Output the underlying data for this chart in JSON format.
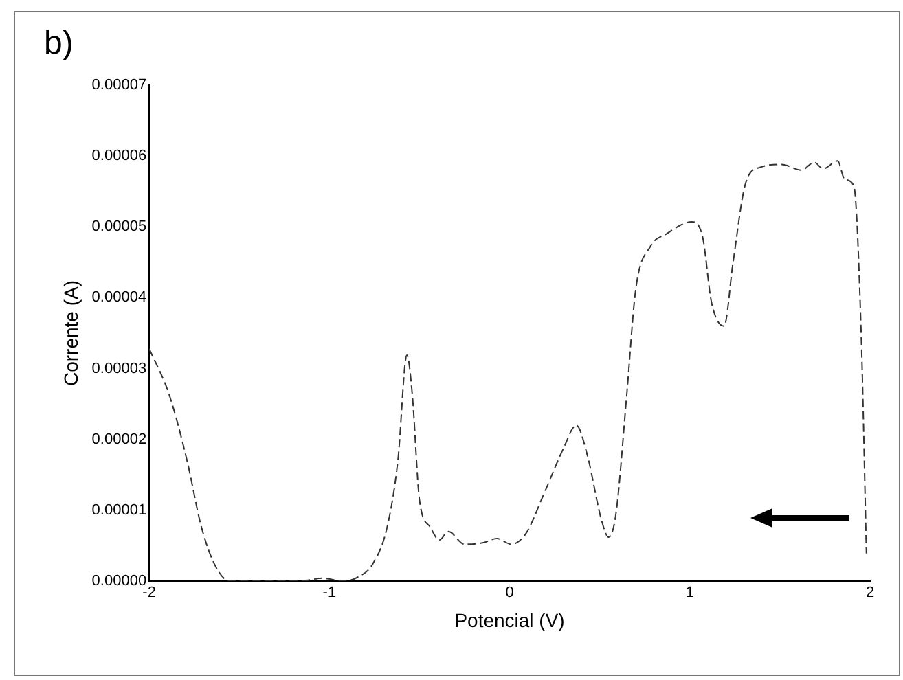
{
  "chart_data": {
    "type": "line",
    "title": "b)",
    "xlabel": "Potencial (V)",
    "ylabel": "Corrente (A)",
    "x": [
      -2,
      -1.889,
      -1.79,
      -1.71,
      -1.63,
      -1.55,
      -1.16,
      -1.04,
      -0.92,
      -0.84,
      -0.76,
      -0.68,
      -0.62,
      -0.57,
      -0.54,
      -0.5,
      -0.44,
      -0.39,
      -0.34,
      -0.25,
      -0.15,
      -0.07,
      0.01,
      0.09,
      0.19,
      0.3,
      0.37,
      0.43,
      0.51,
      0.55,
      0.59,
      0.65,
      0.7,
      0.78,
      0.87,
      1.01,
      1.07,
      1.12,
      1.19,
      1.24,
      1.31,
      1.39,
      1.51,
      1.62,
      1.69,
      1.74,
      1.82,
      1.86,
      1.91,
      1.95,
      1.98
    ],
    "series": [
      {
        "color": "#333333",
        "values": [
          3.28e-05,
          2.63e-05,
          1.7e-05,
          7.6e-06,
          2e-06,
          0,
          0,
          4e-07,
          0,
          6e-07,
          2.4e-06,
          7.6e-06,
          1.7e-05,
          3.19e-05,
          2.63e-05,
          1.14e-05,
          7.6e-06,
          5.8e-06,
          7e-06,
          5.2e-06,
          5.4e-06,
          6e-06,
          5.2e-06,
          6.7e-06,
          1.23e-05,
          1.88e-05,
          2.2e-05,
          1.79e-05,
          8.6e-06,
          6.2e-06,
          9.5e-06,
          2.63e-05,
          4.12e-05,
          4.72e-05,
          4.9e-05,
          5.07e-05,
          4.87e-05,
          3.94e-05,
          3.6e-05,
          4.5e-05,
          5.62e-05,
          5.84e-05,
          5.88e-05,
          5.8e-05,
          5.91e-05,
          5.82e-05,
          5.93e-05,
          5.67e-05,
          5.58e-05,
          3.56e-05,
          3.9e-06
        ]
      }
    ],
    "xlim": [
      -2,
      2
    ],
    "xticks": [
      -2,
      -1,
      0,
      1,
      2
    ],
    "ylim": [
      0,
      7e-05
    ],
    "yticks": [
      {
        "value": 0,
        "label": "0.00000"
      },
      {
        "value": 1e-05,
        "label": "0.00001"
      },
      {
        "value": 2e-05,
        "label": "0.00002"
      },
      {
        "value": 3e-05,
        "label": "0.00003"
      },
      {
        "value": 4e-05,
        "label": "0.00004"
      },
      {
        "value": 5e-05,
        "label": "0.00005"
      },
      {
        "value": 6e-05,
        "label": "0.00006"
      },
      {
        "value": 7e-05,
        "label": "0.00007"
      }
    ],
    "grid": false,
    "legend": false,
    "marker": "none",
    "line_style": "dashed"
  }
}
